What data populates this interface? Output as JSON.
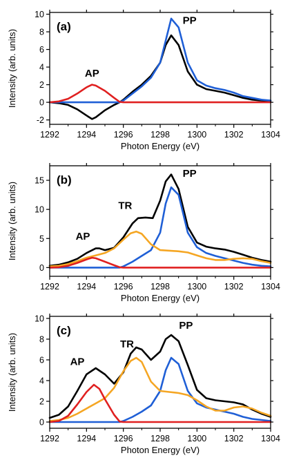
{
  "chart_data": [
    {
      "type": "line",
      "panel_label": "(a)",
      "xlabel": "Photon Energy (eV)",
      "ylabel": "Intensity (arb. units)",
      "xlim": [
        1292,
        1304
      ],
      "ylim": [
        -2.5,
        10.2
      ],
      "xticks": [
        1292,
        1294,
        1296,
        1298,
        1300,
        1302,
        1304
      ],
      "yticks": [
        -2,
        0,
        2,
        4,
        6,
        8,
        10
      ],
      "annotations": [
        {
          "text": "AP",
          "x": 1294.3,
          "y": 2.9
        },
        {
          "text": "PP",
          "x": 1299.6,
          "y": 8.9
        }
      ],
      "series": [
        {
          "color": "#000000",
          "x": [
            1292,
            1292.5,
            1293,
            1293.5,
            1294,
            1294.3,
            1294.5,
            1295,
            1295.5,
            1295.8,
            1296,
            1296.5,
            1297,
            1297.5,
            1298,
            1298.3,
            1298.6,
            1299,
            1299.5,
            1300,
            1300.5,
            1301,
            1301.5,
            1302,
            1302.5,
            1303,
            1303.5,
            1304
          ],
          "y": [
            0,
            -0.1,
            -0.3,
            -0.8,
            -1.5,
            -1.9,
            -1.7,
            -0.9,
            -0.3,
            0,
            0.3,
            1.2,
            2.0,
            3.0,
            4.5,
            6.5,
            7.6,
            6.5,
            3.5,
            2.0,
            1.5,
            1.3,
            1.1,
            0.8,
            0.5,
            0.3,
            0.2,
            0.15
          ]
        },
        {
          "color": "#1f5fd6",
          "x": [
            1292,
            1292.5,
            1293,
            1293.5,
            1294,
            1294.5,
            1295,
            1295.5,
            1295.8,
            1296,
            1296.5,
            1297,
            1297.5,
            1298,
            1298.3,
            1298.6,
            1299,
            1299.5,
            1300,
            1300.5,
            1301,
            1301.5,
            1302,
            1302.5,
            1303,
            1303.5,
            1304
          ],
          "y": [
            0,
            0,
            0,
            0,
            0,
            0,
            0,
            0,
            0,
            0.2,
            1.0,
            1.8,
            2.8,
            4.5,
            7.0,
            9.5,
            8.5,
            4.5,
            2.5,
            1.9,
            1.6,
            1.4,
            1.1,
            0.7,
            0.5,
            0.3,
            0.2
          ]
        },
        {
          "color": "#e02020",
          "x": [
            1292,
            1292.5,
            1293,
            1293.5,
            1294,
            1294.3,
            1294.5,
            1295,
            1295.5,
            1295.8,
            1296,
            1297,
            1298,
            1299,
            1300,
            1301,
            1302,
            1303,
            1304
          ],
          "y": [
            0,
            0.1,
            0.4,
            1.0,
            1.7,
            2.0,
            1.9,
            1.3,
            0.5,
            0.05,
            0,
            0,
            0,
            0,
            0,
            0,
            0,
            0,
            0
          ]
        }
      ]
    },
    {
      "type": "line",
      "panel_label": "(b)",
      "xlabel": "Photon Energy (eV)",
      "ylabel": "Intensity (arb. units)",
      "xlim": [
        1292,
        1304
      ],
      "ylim": [
        -1.5,
        17.5
      ],
      "xticks": [
        1292,
        1294,
        1296,
        1298,
        1300,
        1302,
        1304
      ],
      "yticks": [
        0,
        5,
        10,
        15
      ],
      "annotations": [
        {
          "text": "AP",
          "x": 1293.8,
          "y": 4.8
        },
        {
          "text": "TR",
          "x": 1296.1,
          "y": 10.1
        },
        {
          "text": "PP",
          "x": 1299.6,
          "y": 15.6
        }
      ],
      "series": [
        {
          "color": "#000000",
          "x": [
            1292,
            1292.5,
            1293,
            1293.5,
            1294,
            1294.5,
            1294.7,
            1295,
            1295.5,
            1296,
            1296.5,
            1296.8,
            1297.2,
            1297.6,
            1298,
            1298.3,
            1298.6,
            1299,
            1299.5,
            1300,
            1300.5,
            1301,
            1301.5,
            1302,
            1302.5,
            1303,
            1303.5,
            1304
          ],
          "y": [
            0.3,
            0.5,
            0.9,
            1.5,
            2.5,
            3.3,
            3.3,
            3.0,
            3.4,
            5.2,
            7.6,
            8.5,
            8.6,
            8.5,
            11.5,
            14.8,
            16.0,
            13.5,
            7.0,
            4.3,
            3.6,
            3.3,
            3.1,
            2.7,
            2.2,
            1.7,
            1.3,
            1.0
          ]
        },
        {
          "color": "#1f5fd6",
          "x": [
            1292,
            1293,
            1294,
            1295,
            1295.8,
            1296,
            1296.5,
            1297,
            1297.5,
            1298,
            1298.3,
            1298.6,
            1299,
            1299.5,
            1300,
            1300.5,
            1301,
            1301.5,
            1302,
            1302.5,
            1303,
            1303.5,
            1304
          ],
          "y": [
            0,
            0,
            0,
            0,
            0,
            0.2,
            1.0,
            2.0,
            3.0,
            6.0,
            11.0,
            13.8,
            12.5,
            6.0,
            3.5,
            2.5,
            2.0,
            1.6,
            1.2,
            0.8,
            0.5,
            0.3,
            0.2
          ]
        },
        {
          "color": "#f5a623",
          "x": [
            1292,
            1292.5,
            1293,
            1293.5,
            1294,
            1294.5,
            1295,
            1295.5,
            1296,
            1296.4,
            1296.7,
            1297,
            1297.5,
            1298,
            1298.5,
            1299,
            1299.5,
            1300,
            1300.5,
            1301,
            1301.5,
            1302,
            1302.5,
            1303,
            1303.5,
            1304
          ],
          "y": [
            0.2,
            0.3,
            0.6,
            1.1,
            1.7,
            2.1,
            2.5,
            3.3,
            4.8,
            5.9,
            6.2,
            5.8,
            4.0,
            3.0,
            2.9,
            2.8,
            2.6,
            2.1,
            1.6,
            1.3,
            1.3,
            1.5,
            1.6,
            1.5,
            1.1,
            0.8
          ]
        },
        {
          "color": "#e02020",
          "x": [
            1292,
            1292.5,
            1293,
            1293.5,
            1294,
            1294.3,
            1294.5,
            1295,
            1295.5,
            1295.8,
            1296,
            1297,
            1298,
            1299,
            1300,
            1301,
            1302,
            1303,
            1304
          ],
          "y": [
            0,
            0.05,
            0.3,
            0.8,
            1.4,
            1.7,
            1.6,
            1.0,
            0.4,
            0.05,
            0,
            0,
            0,
            0,
            0,
            0,
            0,
            0,
            0
          ]
        }
      ]
    },
    {
      "type": "line",
      "panel_label": "(c)",
      "xlabel": "Photon Energy (eV)",
      "ylabel": "Intensity (arb. units)",
      "xlim": [
        1292,
        1304
      ],
      "ylim": [
        -0.6,
        10.2
      ],
      "xticks": [
        1292,
        1294,
        1296,
        1298,
        1300,
        1302,
        1304
      ],
      "yticks": [
        0,
        2,
        4,
        6,
        8,
        10
      ],
      "annotations": [
        {
          "text": "AP",
          "x": 1293.5,
          "y": 5.5
        },
        {
          "text": "TR",
          "x": 1296.2,
          "y": 7.2
        },
        {
          "text": "PP",
          "x": 1299.4,
          "y": 9.0
        }
      ],
      "series": [
        {
          "color": "#000000",
          "x": [
            1292,
            1292.5,
            1293,
            1293.5,
            1294,
            1294.5,
            1295,
            1295.5,
            1296,
            1296.4,
            1296.7,
            1297,
            1297.5,
            1298,
            1298.3,
            1298.6,
            1299,
            1299.5,
            1300,
            1300.5,
            1301,
            1301.5,
            1302,
            1302.5,
            1303,
            1303.5,
            1304
          ],
          "y": [
            0.4,
            0.7,
            1.5,
            3.0,
            4.6,
            5.2,
            4.6,
            3.7,
            4.8,
            6.6,
            7.2,
            7.0,
            6.0,
            6.8,
            8.0,
            8.4,
            7.8,
            5.5,
            3.1,
            2.3,
            2.1,
            2.0,
            1.9,
            1.7,
            1.2,
            0.8,
            0.5
          ]
        },
        {
          "color": "#1f5fd6",
          "x": [
            1292,
            1293,
            1294,
            1295,
            1295.8,
            1296,
            1296.5,
            1297,
            1297.5,
            1298,
            1298.3,
            1298.6,
            1299,
            1299.5,
            1300,
            1300.5,
            1301,
            1301.5,
            1302,
            1302.5,
            1303,
            1303.5,
            1304
          ],
          "y": [
            0,
            0,
            0,
            0,
            0,
            0.1,
            0.5,
            1.0,
            1.6,
            3.0,
            5.0,
            6.2,
            5.6,
            3.0,
            1.8,
            1.4,
            1.2,
            1.0,
            0.8,
            0.5,
            0.3,
            0.2,
            0.1
          ]
        },
        {
          "color": "#f5a623",
          "x": [
            1292,
            1292.5,
            1293,
            1293.5,
            1294,
            1294.5,
            1295,
            1295.5,
            1296,
            1296.4,
            1296.7,
            1297,
            1297.5,
            1298,
            1298.5,
            1299,
            1299.5,
            1300,
            1300.5,
            1301,
            1301.5,
            1302,
            1302.5,
            1303,
            1303.5,
            1304
          ],
          "y": [
            0.1,
            0.2,
            0.4,
            0.8,
            1.3,
            1.8,
            2.3,
            3.3,
            4.9,
            5.9,
            6.2,
            5.8,
            3.9,
            3.0,
            2.9,
            2.8,
            2.6,
            2.1,
            1.5,
            1.1,
            1.1,
            1.4,
            1.5,
            1.3,
            0.9,
            0.6
          ]
        },
        {
          "color": "#e02020",
          "x": [
            1292,
            1292.5,
            1293,
            1293.5,
            1294,
            1294.4,
            1294.7,
            1295,
            1295.5,
            1295.8,
            1296,
            1297,
            1298,
            1299,
            1300,
            1301,
            1302,
            1303,
            1304
          ],
          "y": [
            0,
            0.1,
            0.6,
            1.7,
            2.9,
            3.6,
            3.2,
            2.2,
            0.7,
            0.05,
            0,
            0,
            0,
            0,
            0,
            0,
            0,
            0,
            0
          ]
        }
      ]
    }
  ]
}
